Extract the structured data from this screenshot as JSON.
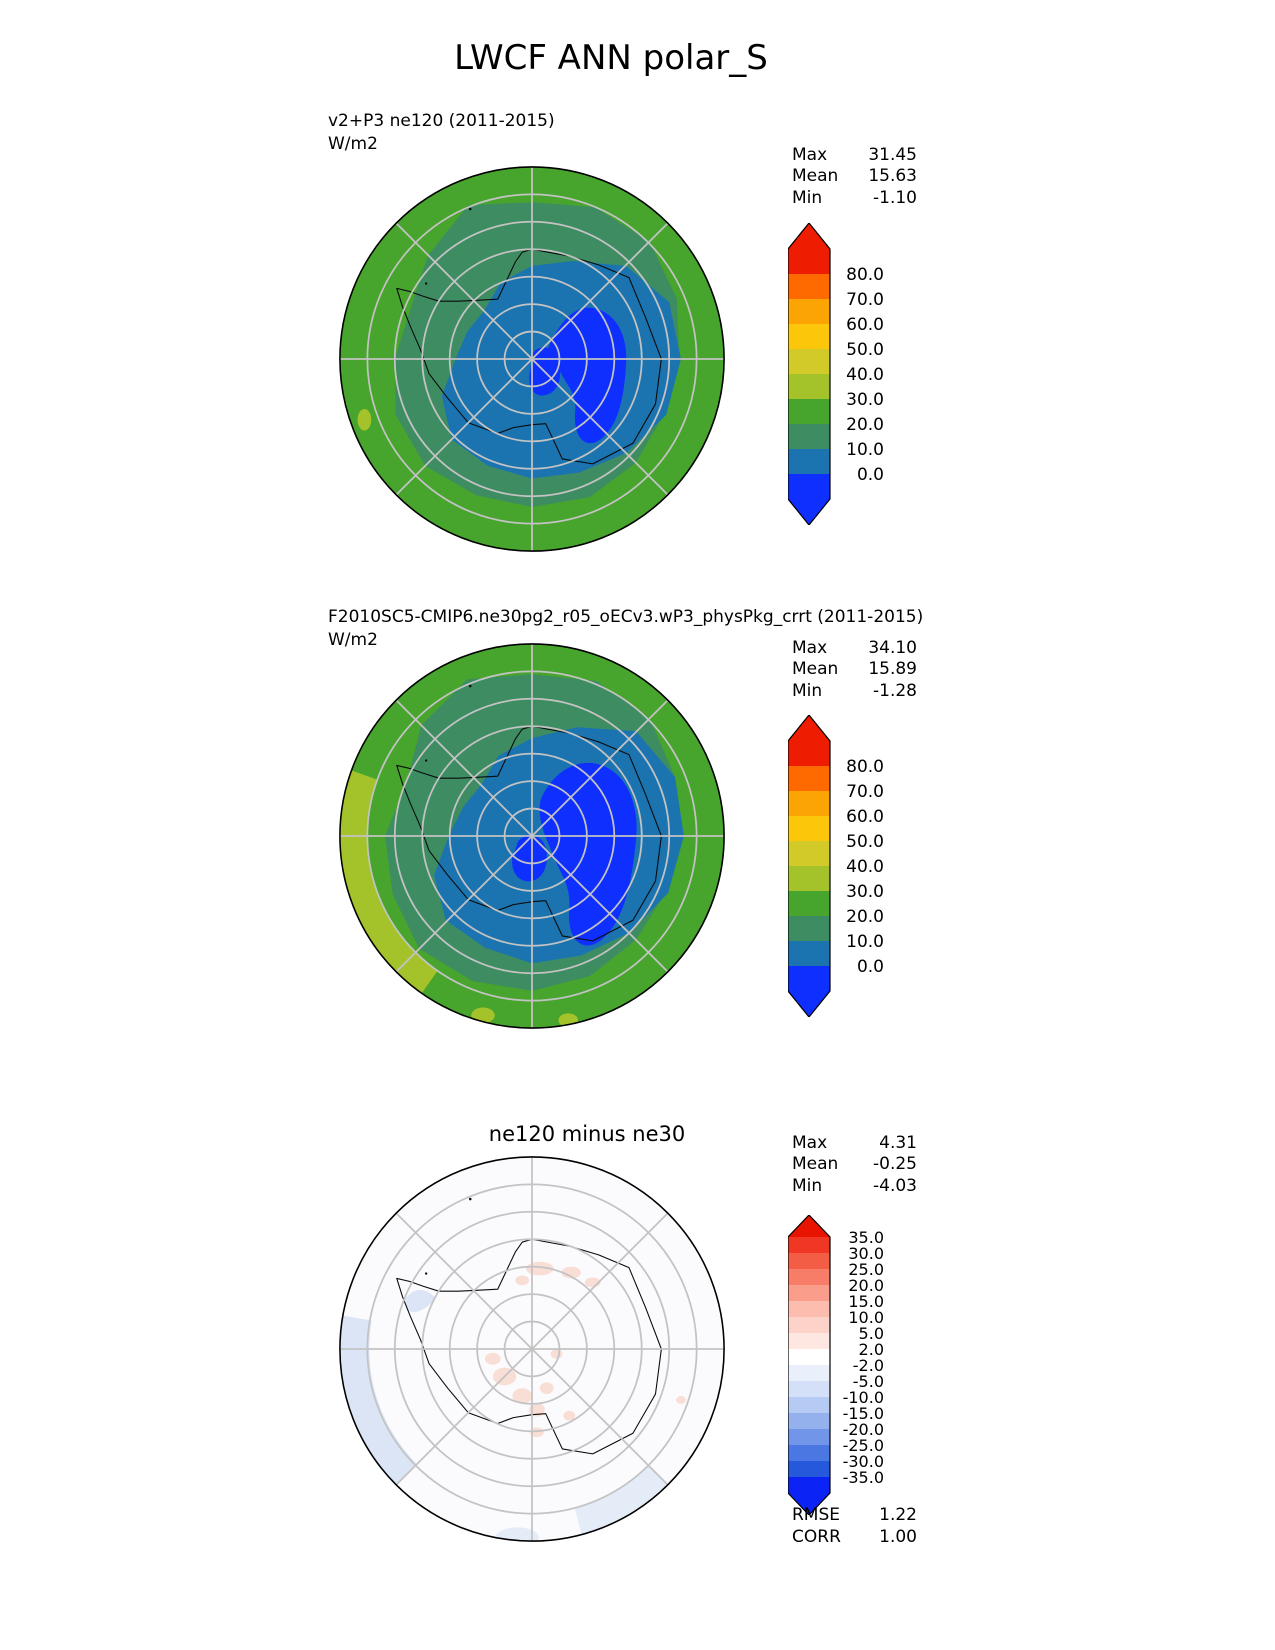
{
  "title": "LWCF ANN polar_S",
  "panels": [
    {
      "label": "v2+P3 ne120 (2011-2015)",
      "units": "W/m2",
      "stats": [
        {
          "label": "Max",
          "value": "31.45"
        },
        {
          "label": "Mean",
          "value": "15.63"
        },
        {
          "label": "Min",
          "value": "-1.10"
        }
      ],
      "colorbar": {
        "ticks": [
          "80.0",
          "70.0",
          "60.0",
          "50.0",
          "40.0",
          "30.0",
          "20.0",
          "10.0",
          "0.0"
        ],
        "colors": [
          "#ee1c00",
          "#ff6a00",
          "#fca404",
          "#fcc60a",
          "#d2ca28",
          "#a4c32b",
          "#47a42c",
          "#3e8d62",
          "#1b74b0",
          "#0f2fff"
        ]
      }
    },
    {
      "label": "F2010SC5-CMIP6.ne30pg2_r05_oECv3.wP3_physPkg_crrt (2011-2015)",
      "units": "W/m2",
      "stats": [
        {
          "label": "Max",
          "value": "34.10"
        },
        {
          "label": "Mean",
          "value": "15.89"
        },
        {
          "label": "Min",
          "value": "-1.28"
        }
      ],
      "colorbar": {
        "ticks": [
          "80.0",
          "70.0",
          "60.0",
          "50.0",
          "40.0",
          "30.0",
          "20.0",
          "10.0",
          "0.0"
        ],
        "colors": [
          "#ee1c00",
          "#ff6a00",
          "#fca404",
          "#fcc60a",
          "#d2ca28",
          "#a4c32b",
          "#47a42c",
          "#3e8d62",
          "#1b74b0",
          "#0f2fff"
        ]
      }
    },
    {
      "title": "ne120 minus ne30",
      "stats": [
        {
          "label": "Max",
          "value": "4.31"
        },
        {
          "label": "Mean",
          "value": "-0.25"
        },
        {
          "label": "Min",
          "value": "-4.03"
        }
      ],
      "colorbar": {
        "ticks": [
          "35.0",
          "30.0",
          "25.0",
          "20.0",
          "15.0",
          "10.0",
          "5.0",
          "2.0",
          "-2.0",
          "-5.0",
          "-10.0",
          "-15.0",
          "-20.0",
          "-25.0",
          "-30.0",
          "-35.0"
        ],
        "colors": [
          "#e81400",
          "#ef3723",
          "#f45d45",
          "#f87d68",
          "#fa9d8b",
          "#fcbcae",
          "#fdd3c9",
          "#fee7e0",
          "#ffffff",
          "#e9effb",
          "#d4e0f8",
          "#b6cbf4",
          "#94b1ee",
          "#7195e8",
          "#4b77e2",
          "#2558da",
          "#0b24f5"
        ]
      },
      "metrics": [
        {
          "label": "RMSE",
          "value": "1.22"
        },
        {
          "label": "CORR",
          "value": "1.00"
        }
      ]
    }
  ],
  "chart_data": [
    {
      "type": "heatmap",
      "panel": "model_1",
      "title": "v2+P3 ne120 (2011-2015)",
      "units": "W/m2",
      "projection": "south polar stereographic",
      "stats": {
        "max": 31.45,
        "mean": 15.63,
        "min": -1.1
      },
      "contour_levels": [
        0,
        10,
        20,
        30,
        40,
        50,
        60,
        70,
        80
      ],
      "palette": [
        "#ee1c00",
        "#ff6a00",
        "#fca404",
        "#fcc60a",
        "#d2ca28",
        "#a4c32b",
        "#47a42c",
        "#3e8d62",
        "#1b74b0",
        "#0f2fff"
      ]
    },
    {
      "type": "heatmap",
      "panel": "model_2",
      "title": "F2010SC5-CMIP6.ne30pg2_r05_oECv3.wP3_physPkg_crrt (2011-2015)",
      "units": "W/m2",
      "projection": "south polar stereographic",
      "stats": {
        "max": 34.1,
        "mean": 15.89,
        "min": -1.28
      },
      "contour_levels": [
        0,
        10,
        20,
        30,
        40,
        50,
        60,
        70,
        80
      ],
      "palette": [
        "#ee1c00",
        "#ff6a00",
        "#fca404",
        "#fcc60a",
        "#d2ca28",
        "#a4c32b",
        "#47a42c",
        "#3e8d62",
        "#1b74b0",
        "#0f2fff"
      ]
    },
    {
      "type": "heatmap",
      "panel": "difference",
      "title": "ne120 minus ne30",
      "units": "W/m2",
      "projection": "south polar stereographic",
      "stats": {
        "max": 4.31,
        "mean": -0.25,
        "min": -4.03,
        "rmse": 1.22,
        "corr": 1.0
      },
      "contour_levels": [
        -35,
        -30,
        -25,
        -20,
        -15,
        -10,
        -5,
        -2,
        2,
        5,
        10,
        15,
        20,
        25,
        30,
        35
      ],
      "palette": [
        "#e81400",
        "#ef3723",
        "#f45d45",
        "#f87d68",
        "#fa9d8b",
        "#fcbcae",
        "#fdd3c9",
        "#fee7e0",
        "#ffffff",
        "#e9effb",
        "#d4e0f8",
        "#b6cbf4",
        "#94b1ee",
        "#7195e8",
        "#4b77e2",
        "#2558da",
        "#0b24f5"
      ]
    }
  ]
}
